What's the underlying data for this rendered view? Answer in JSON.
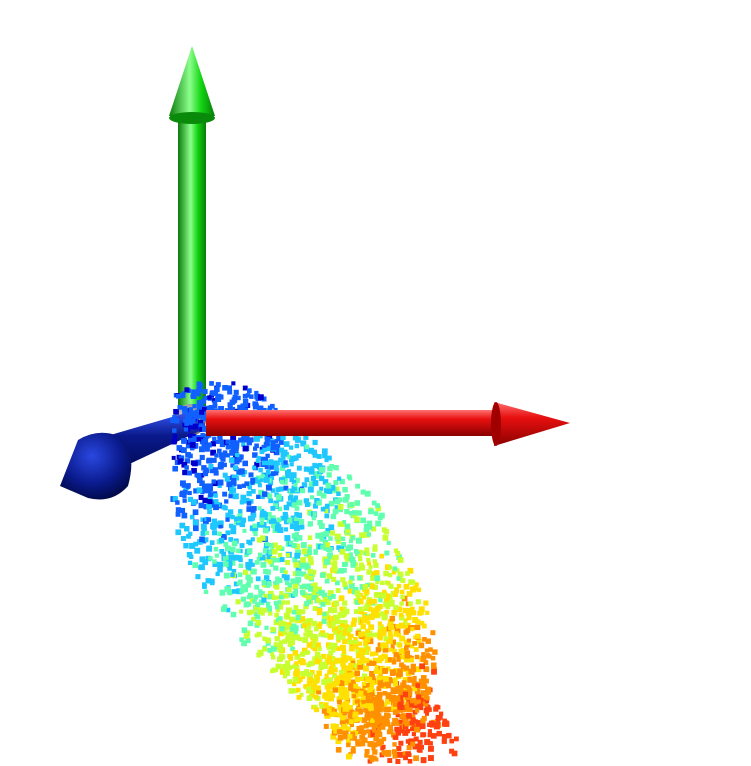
{
  "scene": {
    "background": "#ffffff",
    "axes": [
      {
        "name": "x-axis",
        "color": "#e81010",
        "highlight": "#ff7070",
        "shade": "#8a0000"
      },
      {
        "name": "y-axis",
        "color": "#12d412",
        "highlight": "#8cff8c",
        "shade": "#0a7a0a"
      },
      {
        "name": "z-axis",
        "color": "#0a1a8c",
        "highlight": "#3a5cff",
        "shade": "#000850"
      }
    ],
    "point_cloud": {
      "colormap": "jet",
      "colors": [
        "#0000cc",
        "#1060ff",
        "#1ec8ff",
        "#60ffb0",
        "#c8ff30",
        "#ffe000",
        "#ff9000",
        "#ff4010"
      ]
    }
  }
}
